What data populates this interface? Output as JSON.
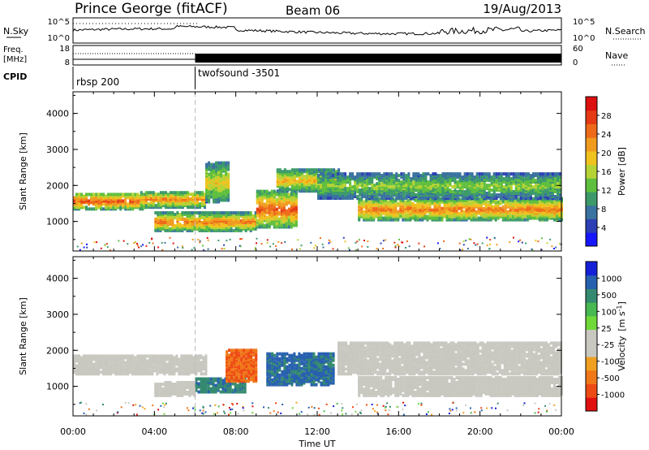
{
  "header": {
    "station": "Prince George (fitACF)",
    "beam": "Beam 06",
    "date": "19/Aug/2013"
  },
  "top_panel": {
    "left_label": "N.Sky",
    "right_label": "N.Search",
    "left_ticks": [
      "10^5",
      "10^0"
    ],
    "right_ticks": [
      "10^5",
      "10^0"
    ]
  },
  "freq_panel": {
    "left_label_1": "Freq.",
    "left_label_2": "[MHz]",
    "right_label": "Nave",
    "left_ticks": [
      "18",
      "8"
    ],
    "right_ticks": [
      "60",
      "0"
    ]
  },
  "cpid_panel": {
    "label": "CPID",
    "segments": [
      {
        "label": "rbsp 200",
        "start_hour": 0,
        "end_hour": 6
      },
      {
        "label": "twofsound -3501",
        "start_hour": 6,
        "end_hour": 24
      }
    ]
  },
  "chart_data": [
    {
      "type": "heatmap",
      "variable": "Power",
      "ylabel": "Slant Range [km]",
      "xlabel": "Time UT",
      "x_ticks": [
        "00:00",
        "04:00",
        "08:00",
        "12:00",
        "16:00",
        "20:00",
        "00:00"
      ],
      "x_range_hours": [
        0,
        24
      ],
      "y_ticks": [
        1000,
        2000,
        3000,
        4000
      ],
      "ylim": [
        180,
        4600
      ],
      "colorbar": {
        "label": "Power [dB]",
        "ticks": [
          "4",
          "8",
          "12",
          "16",
          "20",
          "24",
          "28"
        ],
        "colors": [
          "#1616ff",
          "#2d3fb5",
          "#3a72a0",
          "#3c9a6a",
          "#5fbf3e",
          "#b6d335",
          "#f0c21e",
          "#f09a1e",
          "#ee6a1a",
          "#e53a14",
          "#dd1010"
        ]
      },
      "echo_bands": [
        {
          "t": [
            0,
            3.5
          ],
          "range": [
            1300,
            1750
          ],
          "peak_db": 26
        },
        {
          "t": [
            3.3,
            6.5
          ],
          "range": [
            1350,
            1800
          ],
          "peak_db": 22
        },
        {
          "t": [
            6.5,
            7.6
          ],
          "range": [
            1500,
            2600
          ],
          "peak_db": 18
        },
        {
          "t": [
            4,
            9
          ],
          "range": [
            700,
            1200
          ],
          "peak_db": 24
        },
        {
          "t": [
            9,
            11
          ],
          "range": [
            800,
            1800
          ],
          "peak_db": 26
        },
        {
          "t": [
            10,
            13
          ],
          "range": [
            1800,
            2400
          ],
          "peak_db": 20
        },
        {
          "t": [
            14,
            24
          ],
          "range": [
            1000,
            1600
          ],
          "peak_db": 24
        },
        {
          "t": [
            12,
            24
          ],
          "range": [
            1600,
            2300
          ],
          "peak_db": 14
        }
      ]
    },
    {
      "type": "heatmap",
      "variable": "Velocity",
      "ylabel": "Slant Range [km]",
      "xlabel": "Time UT",
      "x_ticks": [
        "00:00",
        "04:00",
        "08:00",
        "12:00",
        "16:00",
        "20:00",
        "00:00"
      ],
      "x_range_hours": [
        0,
        24
      ],
      "y_ticks": [
        1000,
        2000,
        3000,
        4000
      ],
      "ylim": [
        180,
        4600
      ],
      "colorbar": {
        "label_main": "Velocity",
        "label_unit": "[m s",
        "label_exp": "-1",
        "ticks": [
          "1000",
          "500",
          "100",
          "25",
          "-25",
          "-100",
          "-500",
          "-1000"
        ],
        "colors": [
          "#1420d8",
          "#2860b0",
          "#348a70",
          "#48b850",
          "#70d838",
          "#c8c8c0",
          "#c8c8c0",
          "#f0a020",
          "#f07818",
          "#ee4a14",
          "#e01010"
        ]
      },
      "echo_bands": [
        {
          "t": [
            0,
            6.5
          ],
          "range": [
            1300,
            1800
          ],
          "velocity": 0
        },
        {
          "t": [
            4,
            6
          ],
          "range": [
            700,
            1100
          ],
          "velocity": -20
        },
        {
          "t": [
            6,
            8.5
          ],
          "range": [
            800,
            1200
          ],
          "velocity": 150
        },
        {
          "t": [
            7.5,
            9
          ],
          "range": [
            1100,
            2000
          ],
          "velocity": -300
        },
        {
          "t": [
            9.5,
            12.8
          ],
          "range": [
            1000,
            1900
          ],
          "velocity": 400
        },
        {
          "t": [
            13,
            24
          ],
          "range": [
            1300,
            2200
          ],
          "velocity": 0
        },
        {
          "t": [
            14,
            24
          ],
          "range": [
            700,
            1200
          ],
          "velocity": -10
        }
      ]
    }
  ]
}
